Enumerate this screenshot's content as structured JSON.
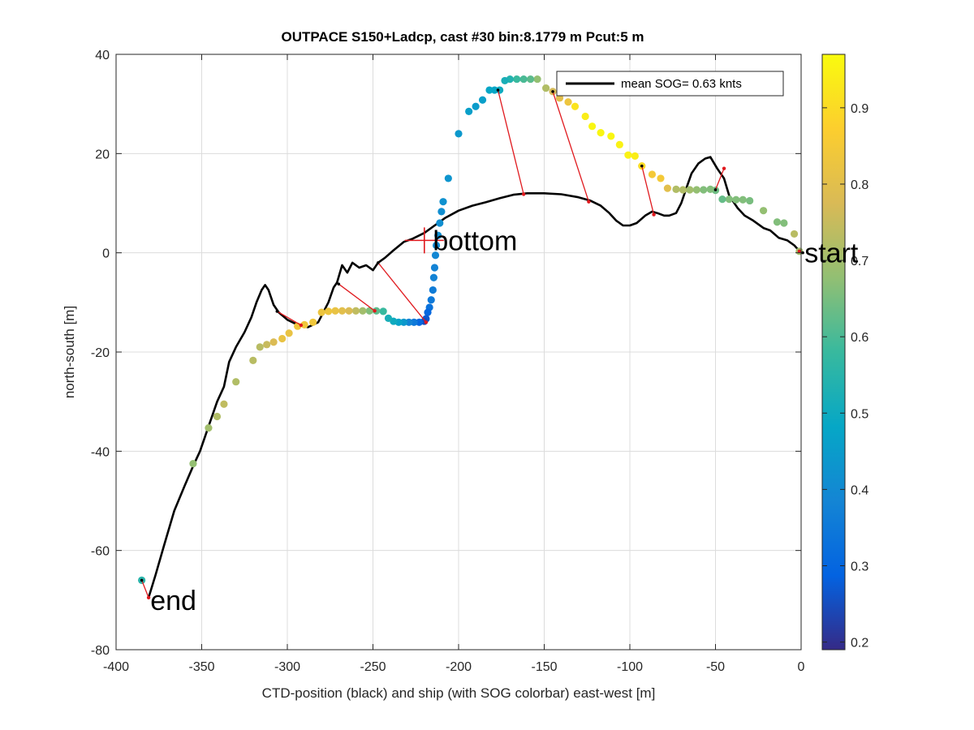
{
  "chart_data": {
    "type": "scatter",
    "title": "OUTPACE S150+Ladcp, cast #30 bin:8.1779 m  Pcut:5 m",
    "xlabel": "CTD-position (black) and ship (with SOG colorbar) east-west [m]",
    "ylabel": "north-south [m]",
    "xlim": [
      -400,
      0
    ],
    "ylim": [
      -80,
      40
    ],
    "xticks": [
      "-400",
      "-350",
      "-300",
      "-250",
      "-200",
      "-150",
      "-100",
      "-50",
      "0"
    ],
    "yticks": [
      "-80",
      "-60",
      "-40",
      "-20",
      "0",
      "20",
      "40"
    ],
    "grid": true,
    "legend": {
      "placement": "top-right",
      "entry": "mean SOG=  0.63 knts"
    },
    "colorbar": {
      "range": [
        0.19,
        0.97
      ],
      "ticks": [
        "0.2",
        "0.3",
        "0.4",
        "0.5",
        "0.6",
        "0.7",
        "0.8",
        "0.9"
      ],
      "colormap": [
        "#352a87",
        "#0363e1",
        "#1485d4",
        "#06a7c6",
        "#38b99e",
        "#92bf73",
        "#d9ba56",
        "#fcce2e",
        "#f9fb0e"
      ]
    },
    "annotations": [
      {
        "text": "start",
        "x": 2,
        "y": 0
      },
      {
        "text": "bottom",
        "x": -215,
        "y": 2.5
      },
      {
        "text": "end",
        "x": -380,
        "y": -70
      }
    ],
    "ctd_track": [
      [
        0,
        0
      ],
      [
        -4,
        1.5
      ],
      [
        -8,
        2.5
      ],
      [
        -13,
        3
      ],
      [
        -18,
        4.5
      ],
      [
        -22,
        5
      ],
      [
        -28,
        6.5
      ],
      [
        -33,
        7.5
      ],
      [
        -37,
        9
      ],
      [
        -42,
        11.5
      ],
      [
        -45,
        15
      ],
      [
        -49,
        17
      ],
      [
        -53,
        19.3
      ],
      [
        -56,
        19
      ],
      [
        -60,
        18
      ],
      [
        -64,
        16
      ],
      [
        -67,
        13
      ],
      [
        -70,
        10
      ],
      [
        -73,
        8
      ],
      [
        -77,
        7.5
      ],
      [
        -80,
        7.5
      ],
      [
        -84,
        8
      ],
      [
        -87,
        8.3
      ],
      [
        -91,
        7.5
      ],
      [
        -96,
        6
      ],
      [
        -100,
        5.5
      ],
      [
        -104,
        5.5
      ],
      [
        -108,
        6.5
      ],
      [
        -112,
        8
      ],
      [
        -117,
        9.5
      ],
      [
        -123,
        10.5
      ],
      [
        -130,
        11.2
      ],
      [
        -140,
        11.8
      ],
      [
        -150,
        12
      ],
      [
        -160,
        12
      ],
      [
        -168,
        11.7
      ],
      [
        -176,
        11
      ],
      [
        -184,
        10.2
      ],
      [
        -192,
        9.5
      ],
      [
        -200,
        8.5
      ],
      [
        -208,
        7
      ],
      [
        -214,
        5.5
      ],
      [
        -220,
        4
      ],
      [
        -227,
        2.8
      ],
      [
        -232,
        2.2
      ],
      [
        -238,
        0.5
      ],
      [
        -243,
        -1
      ],
      [
        -247,
        -2
      ],
      [
        -250,
        -3.5
      ],
      [
        -254,
        -2.5
      ],
      [
        -258,
        -3
      ],
      [
        -262,
        -2
      ],
      [
        -265,
        -4
      ],
      [
        -268,
        -2.5
      ],
      [
        -271,
        -6
      ],
      [
        -273,
        -7
      ],
      [
        -276,
        -10
      ],
      [
        -279,
        -12
      ],
      [
        -282,
        -14
      ],
      [
        -288,
        -15
      ],
      [
        -294,
        -14.5
      ],
      [
        -300,
        -13.5
      ],
      [
        -305,
        -12
      ],
      [
        -308,
        -10.5
      ],
      [
        -311,
        -7.5
      ],
      [
        -313,
        -6.5
      ],
      [
        -315,
        -7.5
      ],
      [
        -318,
        -10
      ],
      [
        -321,
        -13
      ],
      [
        -325,
        -16
      ],
      [
        -330,
        -19
      ],
      [
        -334,
        -22
      ],
      [
        -337,
        -27
      ],
      [
        -341,
        -30
      ],
      [
        -346,
        -35
      ],
      [
        -351,
        -40
      ],
      [
        -355,
        -43
      ],
      [
        -360,
        -47
      ],
      [
        -366,
        -52
      ],
      [
        -372,
        -59
      ],
      [
        -377,
        -65
      ],
      [
        -381,
        -69.5
      ]
    ],
    "ship_points": [
      [
        -1,
        0.3,
        0.7
      ],
      [
        -4,
        3.8,
        0.73
      ],
      [
        -10,
        6,
        0.66
      ],
      [
        -14,
        6.2,
        0.66
      ],
      [
        -22,
        8.5,
        0.68
      ],
      [
        -30,
        10.5,
        0.65
      ],
      [
        -34,
        10.7,
        0.66
      ],
      [
        -38,
        10.7,
        0.66
      ],
      [
        -42,
        10.8,
        0.66
      ],
      [
        -46,
        10.8,
        0.63
      ],
      [
        -50,
        12.6,
        0.64
      ],
      [
        -53,
        12.8,
        0.66
      ],
      [
        -57,
        12.7,
        0.66
      ],
      [
        -61,
        12.7,
        0.68
      ],
      [
        -65,
        12.7,
        0.7
      ],
      [
        -69,
        12.7,
        0.72
      ],
      [
        -73,
        12.8,
        0.72
      ],
      [
        -78,
        13,
        0.8
      ],
      [
        -82,
        15,
        0.85
      ],
      [
        -87,
        15.8,
        0.85
      ],
      [
        -93,
        17.5,
        0.9
      ],
      [
        -97,
        19.5,
        0.94
      ],
      [
        -101,
        19.7,
        0.95
      ],
      [
        -106,
        21.8,
        0.95
      ],
      [
        -111,
        23.5,
        0.96
      ],
      [
        -117,
        24.2,
        0.96
      ],
      [
        -122,
        25.5,
        0.96
      ],
      [
        -126,
        27.5,
        0.94
      ],
      [
        -132,
        29.5,
        0.92
      ],
      [
        -136,
        30.4,
        0.83
      ],
      [
        -141,
        31.2,
        0.8
      ],
      [
        -145,
        32.5,
        0.77
      ],
      [
        -149,
        33.2,
        0.72
      ],
      [
        -154,
        35,
        0.68
      ],
      [
        -158,
        35,
        0.62
      ],
      [
        -162,
        35,
        0.6
      ],
      [
        -166,
        35,
        0.58
      ],
      [
        -170,
        35,
        0.54
      ],
      [
        -173,
        34.7,
        0.52
      ],
      [
        -176,
        32.8,
        0.5
      ],
      [
        -179,
        32.8,
        0.48
      ],
      [
        -182,
        32.8,
        0.48
      ],
      [
        -186,
        30.8,
        0.46
      ],
      [
        -190,
        29.5,
        0.45
      ],
      [
        -194,
        28.5,
        0.46
      ],
      [
        -200,
        24,
        0.44
      ],
      [
        -206,
        15,
        0.43
      ],
      [
        -209,
        10.3,
        0.42
      ],
      [
        -210,
        8.3,
        0.41
      ],
      [
        -211,
        6,
        0.41
      ],
      [
        -212,
        3.5,
        0.41
      ],
      [
        -213,
        1.5,
        0.4
      ],
      [
        -213.5,
        -0.5,
        0.39
      ],
      [
        -214,
        -3,
        0.38
      ],
      [
        -214.5,
        -5,
        0.38
      ],
      [
        -215,
        -7.5,
        0.36
      ],
      [
        -216,
        -9.5,
        0.35
      ],
      [
        -217,
        -11,
        0.33
      ],
      [
        -218,
        -12,
        0.3
      ],
      [
        -219,
        -13.3,
        0.27
      ],
      [
        -220,
        -13.8,
        0.25
      ],
      [
        -223,
        -14,
        0.3
      ],
      [
        -226,
        -14,
        0.35
      ],
      [
        -229,
        -14,
        0.38
      ],
      [
        -232,
        -14,
        0.44
      ],
      [
        -235,
        -14,
        0.47
      ],
      [
        -238,
        -13.8,
        0.5
      ],
      [
        -241,
        -13.2,
        0.52
      ],
      [
        -244,
        -11.8,
        0.58
      ],
      [
        -248,
        -11.7,
        0.62
      ],
      [
        -252,
        -11.7,
        0.66
      ],
      [
        -256,
        -11.7,
        0.7
      ],
      [
        -260,
        -11.7,
        0.74
      ],
      [
        -264,
        -11.7,
        0.78
      ],
      [
        -268,
        -11.7,
        0.8
      ],
      [
        -272,
        -11.7,
        0.82
      ],
      [
        -276,
        -11.8,
        0.83
      ],
      [
        -280,
        -12,
        0.83
      ],
      [
        -285,
        -14,
        0.84
      ],
      [
        -290,
        -14.5,
        0.84
      ],
      [
        -294,
        -14.8,
        0.84
      ],
      [
        -299,
        -16.2,
        0.82
      ],
      [
        -303,
        -17.3,
        0.82
      ],
      [
        -308,
        -18,
        0.78
      ],
      [
        -312,
        -18.5,
        0.75
      ],
      [
        -316,
        -19,
        0.73
      ],
      [
        -320,
        -21.7,
        0.73
      ],
      [
        -330,
        -26,
        0.72
      ],
      [
        -337,
        -30.5,
        0.74
      ],
      [
        -341,
        -33,
        0.72
      ],
      [
        -346,
        -35.3,
        0.7
      ],
      [
        -355,
        -42.5,
        0.68
      ],
      [
        -385,
        -66,
        0.55
      ]
    ],
    "correspondence_lines": [
      [
        [
          -45,
          17
        ],
        [
          -50,
          12.7
        ]
      ],
      [
        [
          -86,
          7.7
        ],
        [
          -93,
          17.5
        ]
      ],
      [
        [
          -124,
          10.3
        ],
        [
          -145,
          32.5
        ]
      ],
      [
        [
          -162,
          11.8
        ],
        [
          -177,
          32.8
        ]
      ],
      [
        [
          -219,
          -14
        ],
        [
          -247,
          -2
        ]
      ],
      [
        [
          -249,
          -11.7
        ],
        [
          -270,
          -6.3
        ]
      ],
      [
        [
          -292,
          -14.6
        ],
        [
          -306,
          -11.8
        ]
      ],
      [
        [
          -381,
          -69.5
        ],
        [
          -385,
          -66
        ]
      ],
      [
        [
          -1,
          0.3
        ],
        [
          1,
          0
        ]
      ]
    ],
    "bottom_marker": [
      -220,
      2.5
    ]
  }
}
